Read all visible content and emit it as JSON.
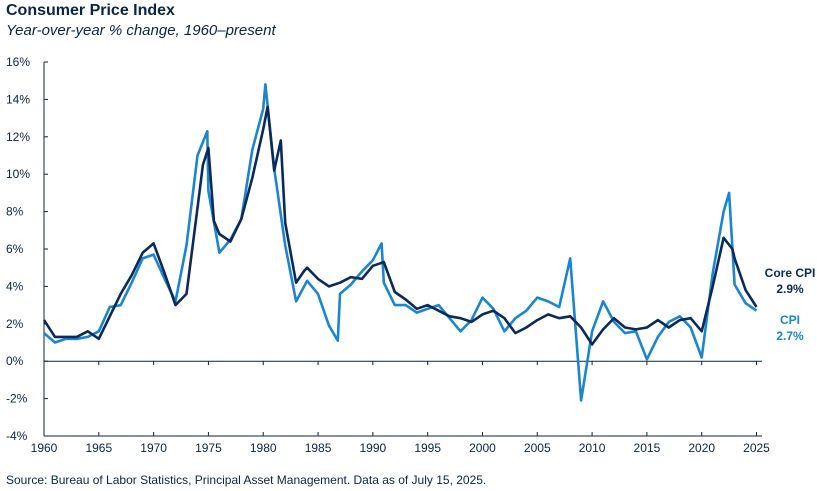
{
  "header": {
    "title": "Consumer Price Index",
    "subtitle": "Year-over-year % change, 1960–present"
  },
  "footer": {
    "source": "Source: Bureau of Labor Statistics, Principal Asset Management. Data as of July 15, 2025."
  },
  "colors": {
    "core_cpi": "#0b2a5b",
    "cpi": "#1a86d0",
    "axis": "#0b2545",
    "zero_line": "#0b2545"
  },
  "chart_data": {
    "type": "line",
    "xlim": [
      1960,
      2025.5
    ],
    "ylim": [
      -4,
      16
    ],
    "x_ticks": [
      1960,
      1965,
      1970,
      1975,
      1980,
      1985,
      1990,
      1995,
      2000,
      2005,
      2010,
      2015,
      2020,
      2025
    ],
    "y_ticks": [
      -4,
      -2,
      0,
      2,
      4,
      6,
      8,
      10,
      12,
      14,
      16
    ],
    "y_tick_labels": [
      "-4%",
      "-2%",
      "0%",
      "2%",
      "4%",
      "6%",
      "8%",
      "10%",
      "12%",
      "14%",
      "16%"
    ],
    "grid": false,
    "legend": "direct-labels-right",
    "series": [
      {
        "name": "Core CPI",
        "end_label": "2.9%",
        "points": [
          [
            1960,
            2.2
          ],
          [
            1961,
            1.3
          ],
          [
            1962,
            1.3
          ],
          [
            1963,
            1.3
          ],
          [
            1964,
            1.6
          ],
          [
            1965,
            1.2
          ],
          [
            1966,
            2.4
          ],
          [
            1967,
            3.6
          ],
          [
            1968,
            4.6
          ],
          [
            1969,
            5.8
          ],
          [
            1970,
            6.3
          ],
          [
            1971,
            4.7
          ],
          [
            1972,
            3.0
          ],
          [
            1973,
            3.6
          ],
          [
            1974,
            8.2
          ],
          [
            1974.5,
            10.5
          ],
          [
            1975,
            11.4
          ],
          [
            1975.5,
            7.5
          ],
          [
            1976,
            6.8
          ],
          [
            1977,
            6.4
          ],
          [
            1978,
            7.6
          ],
          [
            1979,
            9.8
          ],
          [
            1980,
            12.4
          ],
          [
            1980.4,
            13.6
          ],
          [
            1981,
            10.2
          ],
          [
            1981.6,
            11.8
          ],
          [
            1982,
            7.4
          ],
          [
            1983,
            4.2
          ],
          [
            1983.7,
            4.8
          ],
          [
            1984,
            5.0
          ],
          [
            1985,
            4.4
          ],
          [
            1986,
            4.0
          ],
          [
            1987,
            4.2
          ],
          [
            1988,
            4.5
          ],
          [
            1989,
            4.4
          ],
          [
            1990,
            5.1
          ],
          [
            1991,
            5.3
          ],
          [
            1992,
            3.7
          ],
          [
            1993,
            3.3
          ],
          [
            1994,
            2.8
          ],
          [
            1995,
            3.0
          ],
          [
            1996,
            2.7
          ],
          [
            1997,
            2.4
          ],
          [
            1998,
            2.3
          ],
          [
            1999,
            2.1
          ],
          [
            2000,
            2.5
          ],
          [
            2001,
            2.7
          ],
          [
            2002,
            2.3
          ],
          [
            2003,
            1.5
          ],
          [
            2004,
            1.8
          ],
          [
            2005,
            2.2
          ],
          [
            2006,
            2.5
          ],
          [
            2007,
            2.3
          ],
          [
            2008,
            2.4
          ],
          [
            2009,
            1.8
          ],
          [
            2010,
            0.9
          ],
          [
            2011,
            1.7
          ],
          [
            2012,
            2.3
          ],
          [
            2013,
            1.8
          ],
          [
            2014,
            1.7
          ],
          [
            2015,
            1.8
          ],
          [
            2016,
            2.2
          ],
          [
            2017,
            1.8
          ],
          [
            2018,
            2.2
          ],
          [
            2019,
            2.3
          ],
          [
            2020,
            1.6
          ],
          [
            2021,
            4.0
          ],
          [
            2022,
            6.6
          ],
          [
            2022.8,
            6.0
          ],
          [
            2023,
            5.5
          ],
          [
            2024,
            3.8
          ],
          [
            2025,
            2.9
          ]
        ]
      },
      {
        "name": "CPI",
        "end_label": "2.7%",
        "points": [
          [
            1960,
            1.5
          ],
          [
            1961,
            1.0
          ],
          [
            1962,
            1.2
          ],
          [
            1963,
            1.2
          ],
          [
            1964,
            1.3
          ],
          [
            1965,
            1.6
          ],
          [
            1966,
            2.9
          ],
          [
            1967,
            3.0
          ],
          [
            1968,
            4.2
          ],
          [
            1969,
            5.5
          ],
          [
            1970,
            5.7
          ],
          [
            1971,
            4.4
          ],
          [
            1972,
            3.2
          ],
          [
            1973,
            6.2
          ],
          [
            1974,
            11.0
          ],
          [
            1974.9,
            12.3
          ],
          [
            1975,
            9.1
          ],
          [
            1976,
            5.8
          ],
          [
            1977,
            6.5
          ],
          [
            1978,
            7.6
          ],
          [
            1979,
            11.3
          ],
          [
            1980,
            13.5
          ],
          [
            1980.2,
            14.8
          ],
          [
            1981,
            10.3
          ],
          [
            1982,
            6.2
          ],
          [
            1983,
            3.2
          ],
          [
            1984,
            4.3
          ],
          [
            1985,
            3.6
          ],
          [
            1986,
            1.9
          ],
          [
            1986.8,
            1.1
          ],
          [
            1987,
            3.6
          ],
          [
            1988,
            4.1
          ],
          [
            1989,
            4.8
          ],
          [
            1990,
            5.4
          ],
          [
            1990.8,
            6.3
          ],
          [
            1991,
            4.2
          ],
          [
            1992,
            3.0
          ],
          [
            1993,
            3.0
          ],
          [
            1994,
            2.6
          ],
          [
            1995,
            2.8
          ],
          [
            1996,
            3.0
          ],
          [
            1997,
            2.3
          ],
          [
            1998,
            1.6
          ],
          [
            1999,
            2.2
          ],
          [
            2000,
            3.4
          ],
          [
            2001,
            2.8
          ],
          [
            2002,
            1.6
          ],
          [
            2003,
            2.3
          ],
          [
            2004,
            2.7
          ],
          [
            2005,
            3.4
          ],
          [
            2006,
            3.2
          ],
          [
            2007,
            2.9
          ],
          [
            2008,
            5.5
          ],
          [
            2009,
            -2.1
          ],
          [
            2010,
            1.6
          ],
          [
            2011,
            3.2
          ],
          [
            2012,
            2.1
          ],
          [
            2013,
            1.5
          ],
          [
            2014,
            1.6
          ],
          [
            2015,
            0.1
          ],
          [
            2016,
            1.3
          ],
          [
            2017,
            2.1
          ],
          [
            2018,
            2.4
          ],
          [
            2019,
            1.8
          ],
          [
            2020,
            0.2
          ],
          [
            2021,
            4.7
          ],
          [
            2022,
            8.0
          ],
          [
            2022.5,
            9.0
          ],
          [
            2023,
            4.1
          ],
          [
            2024,
            3.1
          ],
          [
            2025,
            2.7
          ]
        ]
      }
    ]
  }
}
